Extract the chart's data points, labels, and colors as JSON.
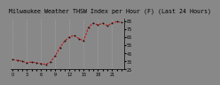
{
  "title": "Milwaukee Weather THSW Index per Hour (F) (Last 24 Hours)",
  "hours": [
    0,
    1,
    2,
    3,
    4,
    5,
    6,
    7,
    8,
    9,
    10,
    11,
    12,
    13,
    14,
    15,
    16,
    17,
    18,
    19,
    20,
    21,
    22,
    23
  ],
  "values": [
    37,
    36,
    35,
    33,
    34,
    33,
    32,
    31,
    34,
    42,
    52,
    60,
    65,
    67,
    63,
    60,
    77,
    82,
    80,
    82,
    79,
    82,
    84,
    83
  ],
  "line_color": "#cc0000",
  "marker_color": "#111111",
  "bg_color": "#888888",
  "plot_bg": "#888888",
  "title_bg": "#888888",
  "grid_color": "#bbbbbb",
  "axis_color": "#000000",
  "text_color": "#000000",
  "ylim_min": 25,
  "ylim_max": 88,
  "yticks": [
    25,
    35,
    45,
    55,
    65,
    75,
    85
  ],
  "ytick_labels": [
    "25",
    "35",
    "45",
    "55",
    "65",
    "75",
    "85"
  ],
  "grid_every": 3,
  "title_fontsize": 4.8,
  "tick_fontsize": 3.5,
  "linewidth": 0.7,
  "markersize": 1.8
}
